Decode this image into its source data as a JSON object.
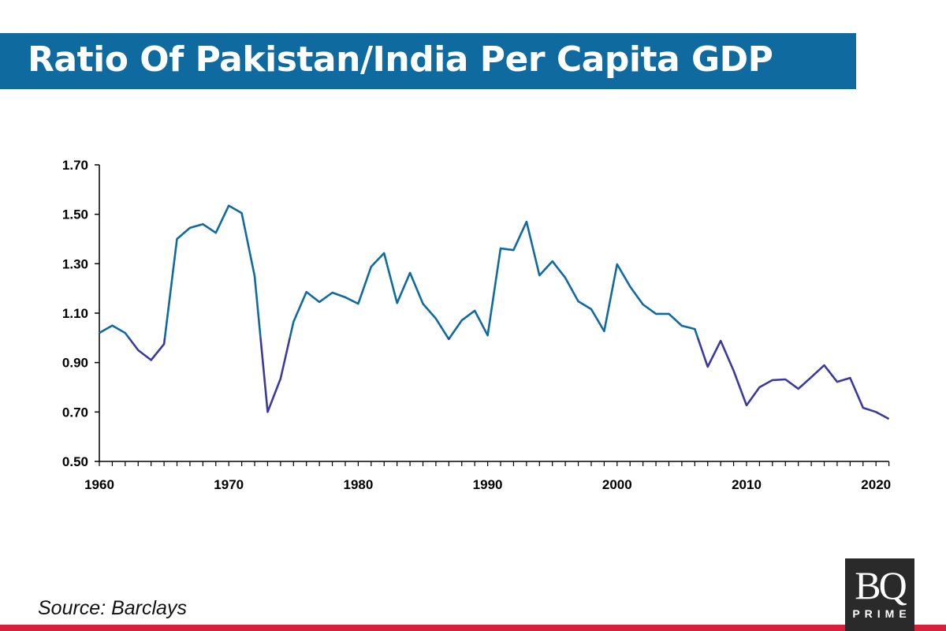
{
  "header": {
    "title": "Ratio Of Pakistan/India Per Capita GDP"
  },
  "footer": {
    "source": "Source: Barclays",
    "logo_text": "BQ PRIME"
  },
  "colors": {
    "header_bg": "#0f6a9f",
    "line_above_1": "#0f6a9f",
    "line_below_1": "#3b3a9c",
    "bottom_rule": "#d91f3e"
  },
  "chart_data": {
    "type": "line",
    "title": "Ratio Of Pakistan/India Per Capita GDP",
    "xlabel": "",
    "ylabel": "",
    "xlim": [
      1960,
      2021
    ],
    "ylim": [
      0.5,
      1.7
    ],
    "x_ticks": [
      "1960",
      "1970",
      "1980",
      "1990",
      "2000",
      "2010",
      "2020"
    ],
    "y_ticks": [
      "0.50",
      "0.70",
      "0.90",
      "1.10",
      "1.30",
      "1.50",
      "1.70"
    ],
    "grid": false,
    "x": [
      1960,
      1961,
      1962,
      1963,
      1964,
      1965,
      1966,
      1967,
      1968,
      1969,
      1970,
      1971,
      1972,
      1973,
      1974,
      1975,
      1976,
      1977,
      1978,
      1979,
      1980,
      1981,
      1982,
      1983,
      1984,
      1985,
      1986,
      1987,
      1988,
      1989,
      1990,
      1991,
      1992,
      1993,
      1994,
      1995,
      1996,
      1997,
      1998,
      1999,
      2000,
      2001,
      2002,
      2003,
      2004,
      2005,
      2006,
      2007,
      2008,
      2009,
      2010,
      2011,
      2012,
      2013,
      2014,
      2015,
      2016,
      2017,
      2018,
      2019,
      2020,
      2021
    ],
    "values": [
      1.02,
      1.05,
      1.02,
      0.95,
      0.91,
      0.975,
      1.4,
      1.445,
      1.46,
      1.425,
      1.535,
      1.505,
      1.25,
      0.7,
      0.835,
      1.065,
      1.186,
      1.145,
      1.183,
      1.164,
      1.138,
      1.288,
      1.343,
      1.141,
      1.263,
      1.138,
      1.078,
      0.995,
      1.071,
      1.11,
      1.01,
      1.362,
      1.355,
      1.47,
      1.253,
      1.31,
      1.243,
      1.148,
      1.116,
      1.027,
      1.298,
      1.208,
      1.135,
      1.097,
      1.097,
      1.049,
      1.036,
      0.883,
      0.988,
      0.867,
      0.727,
      0.8,
      0.829,
      0.832,
      0.794,
      0.841,
      0.889,
      0.822,
      0.838,
      0.717,
      0.7,
      0.672
    ]
  }
}
